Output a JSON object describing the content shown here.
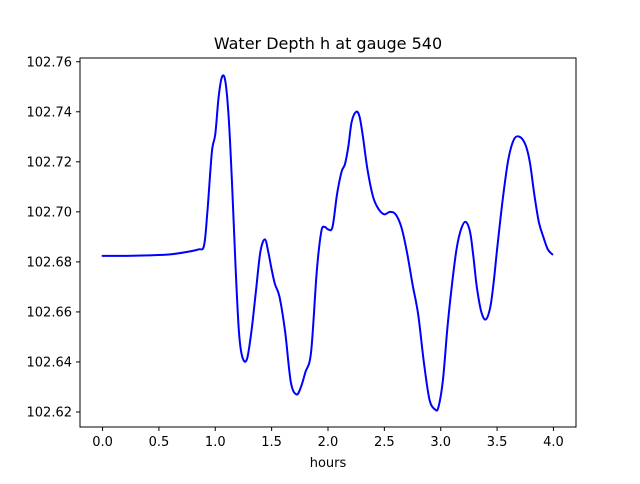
{
  "chart_data": {
    "type": "line",
    "title": "Water Depth h at gauge 540",
    "xlabel": "hours",
    "ylabel": "",
    "xlim": [
      -0.2,
      4.2
    ],
    "ylim": [
      102.614,
      102.7615
    ],
    "grid": false,
    "x_ticks": [
      {
        "value": 0.0,
        "label": "0.0"
      },
      {
        "value": 0.5,
        "label": "0.5"
      },
      {
        "value": 1.0,
        "label": "1.0"
      },
      {
        "value": 1.5,
        "label": "1.5"
      },
      {
        "value": 2.0,
        "label": "2.0"
      },
      {
        "value": 2.5,
        "label": "2.5"
      },
      {
        "value": 3.0,
        "label": "3.0"
      },
      {
        "value": 3.5,
        "label": "3.5"
      },
      {
        "value": 4.0,
        "label": "4.0"
      }
    ],
    "y_ticks": [
      {
        "value": 102.62,
        "label": "102.62"
      },
      {
        "value": 102.64,
        "label": "102.64"
      },
      {
        "value": 102.66,
        "label": "102.66"
      },
      {
        "value": 102.68,
        "label": "102.68"
      },
      {
        "value": 102.7,
        "label": "102.70"
      },
      {
        "value": 102.72,
        "label": "102.72"
      },
      {
        "value": 102.74,
        "label": "102.74"
      },
      {
        "value": 102.76,
        "label": "102.76"
      }
    ],
    "series": [
      {
        "name": "h",
        "color": "#0000ff",
        "x": [
          0.0,
          0.2,
          0.4,
          0.6,
          0.75,
          0.85,
          0.9,
          0.93,
          0.97,
          1.0,
          1.03,
          1.06,
          1.09,
          1.12,
          1.15,
          1.18,
          1.21,
          1.24,
          1.28,
          1.32,
          1.36,
          1.4,
          1.44,
          1.47,
          1.5,
          1.53,
          1.57,
          1.62,
          1.67,
          1.72,
          1.76,
          1.8,
          1.85,
          1.9,
          1.94,
          1.97,
          2.0,
          2.04,
          2.08,
          2.12,
          2.15,
          2.18,
          2.21,
          2.25,
          2.28,
          2.31,
          2.35,
          2.4,
          2.45,
          2.5,
          2.55,
          2.6,
          2.65,
          2.7,
          2.75,
          2.8,
          2.85,
          2.9,
          2.95,
          2.98,
          3.02,
          3.06,
          3.1,
          3.14,
          3.18,
          3.22,
          3.26,
          3.29,
          3.32,
          3.36,
          3.4,
          3.44,
          3.47,
          3.5,
          3.55,
          3.6,
          3.65,
          3.7,
          3.75,
          3.79,
          3.83,
          3.87,
          3.91,
          3.95,
          3.99
        ],
        "y": [
          102.6824,
          102.6824,
          102.6826,
          102.683,
          102.684,
          102.685,
          102.6865,
          102.7,
          102.724,
          102.731,
          102.746,
          102.754,
          102.752,
          102.737,
          102.71,
          102.678,
          102.652,
          102.642,
          102.641,
          102.652,
          102.668,
          102.684,
          102.689,
          102.684,
          102.677,
          102.671,
          102.666,
          102.652,
          102.632,
          102.627,
          102.63,
          102.636,
          102.644,
          102.676,
          102.692,
          102.694,
          102.693,
          102.694,
          102.707,
          102.716,
          102.719,
          102.726,
          102.736,
          102.74,
          102.738,
          102.73,
          102.717,
          102.706,
          102.701,
          102.699,
          102.7,
          102.699,
          102.694,
          102.684,
          102.671,
          102.659,
          102.64,
          102.625,
          102.621,
          102.622,
          102.633,
          102.654,
          102.671,
          102.685,
          102.693,
          102.696,
          102.692,
          102.682,
          102.67,
          102.66,
          102.657,
          102.662,
          102.672,
          102.685,
          102.705,
          102.721,
          102.729,
          102.73,
          102.727,
          102.72,
          102.707,
          102.696,
          102.69,
          102.685,
          102.683
        ]
      }
    ]
  }
}
